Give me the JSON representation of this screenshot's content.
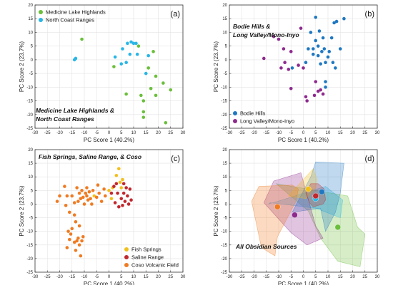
{
  "chart_data": [
    {
      "type": "scatter",
      "panel_label": "(a)",
      "title": "Medicine Lake Highlands & North Coast Ranges",
      "xlabel": "PC Score 1 (40.2%)",
      "ylabel": "PC Score 2 (23.7%)",
      "xlim": [
        -30,
        30
      ],
      "ylim": [
        -25,
        20
      ],
      "xticks": [
        -30,
        -25,
        -20,
        -15,
        -10,
        -5,
        0,
        5,
        10,
        15,
        20,
        25,
        30
      ],
      "yticks": [
        -25,
        -20,
        -15,
        -10,
        -5,
        0,
        5,
        10,
        15,
        20
      ],
      "grid": true,
      "legend_position": "top-left",
      "series": [
        {
          "name": "Medicine Lake Highlands",
          "color": "#6bbf3b",
          "points": [
            [
              -11,
              7.5
            ],
            [
              2,
              -2.5
            ],
            [
              7,
              -12.5
            ],
            [
              12,
              5
            ],
            [
              13,
              -13
            ],
            [
              14,
              -15
            ],
            [
              14,
              -19
            ],
            [
              14,
              -21
            ],
            [
              16,
              -3
            ],
            [
              17,
              -10.5
            ],
            [
              18,
              3
            ],
            [
              19,
              -6
            ],
            [
              19,
              -13
            ],
            [
              22,
              -8.5
            ],
            [
              23,
              -23
            ],
            [
              25,
              -11
            ]
          ]
        },
        {
          "name": "North Coast Ranges",
          "color": "#29b6e6",
          "points": [
            [
              -14,
              0
            ],
            [
              -13.5,
              0.5
            ],
            [
              2.5,
              1
            ],
            [
              5.5,
              4
            ],
            [
              5,
              -1.5
            ],
            [
              7,
              -1
            ],
            [
              7.5,
              6
            ],
            [
              8.5,
              2
            ],
            [
              9,
              6.5
            ],
            [
              10,
              6
            ],
            [
              11,
              6
            ],
            [
              11.5,
              2
            ],
            [
              15,
              -5
            ],
            [
              16,
              1.5
            ]
          ]
        }
      ]
    },
    {
      "type": "scatter",
      "panel_label": "(b)",
      "title": "Bodie Hills & Long Valley/Mono-Inyo",
      "xlabel": "PC Score 1 (40.2%)",
      "ylabel": "PC Score 2 (23.7%)",
      "xlim": [
        -30,
        30
      ],
      "ylim": [
        -25,
        20
      ],
      "xticks": [
        -30,
        -25,
        -20,
        -15,
        -10,
        -5,
        0,
        5,
        10,
        15,
        20,
        25,
        30
      ],
      "yticks": [
        -25,
        -20,
        -15,
        -10,
        -5,
        0,
        5,
        10,
        15,
        20
      ],
      "grid": true,
      "legend_position": "bottom-left",
      "series": [
        {
          "name": "Bodie Hills",
          "color": "#1f78c1",
          "points": [
            [
              -4.5,
              -3
            ],
            [
              1,
              -1
            ],
            [
              2,
              4
            ],
            [
              3,
              10
            ],
            [
              4,
              2
            ],
            [
              4,
              4
            ],
            [
              5,
              7
            ],
            [
              5,
              15.5
            ],
            [
              6,
              1.5
            ],
            [
              6,
              5
            ],
            [
              6.5,
              10.5
            ],
            [
              7,
              -1.5
            ],
            [
              7.5,
              3
            ],
            [
              8,
              8
            ],
            [
              8.5,
              4
            ],
            [
              9,
              -1
            ],
            [
              9,
              -8
            ],
            [
              9,
              -10
            ],
            [
              10,
              1
            ],
            [
              10.5,
              3
            ],
            [
              11.5,
              8
            ],
            [
              12,
              -1
            ],
            [
              12.5,
              13.5
            ],
            [
              13,
              -3
            ],
            [
              13.5,
              14
            ],
            [
              15,
              4
            ],
            [
              16.5,
              15
            ]
          ]
        },
        {
          "name": "Long Valley/Mono-Inyo",
          "color": "#8e2a8e",
          "points": [
            [
              -16,
              0.5
            ],
            [
              -12,
              8.5
            ],
            [
              -10,
              7.5
            ],
            [
              -9,
              -3
            ],
            [
              -8,
              4
            ],
            [
              -7.5,
              -1
            ],
            [
              -6,
              -3.5
            ],
            [
              -5,
              3
            ],
            [
              -5,
              -10.5
            ],
            [
              -2,
              -2
            ],
            [
              -1,
              11.5
            ],
            [
              0,
              -3
            ],
            [
              1,
              -13.5
            ],
            [
              1.5,
              -15
            ],
            [
              4.5,
              -13
            ],
            [
              5,
              -8
            ],
            [
              6,
              -11.5
            ],
            [
              7,
              -11
            ],
            [
              8,
              -12.5
            ]
          ]
        }
      ]
    },
    {
      "type": "scatter",
      "panel_label": "(c)",
      "title": "Fish Springs, Saline Range, & Coso",
      "xlabel": "PC Score 1 (40.2%)",
      "ylabel": "PC Score 2 (23.7%)",
      "xlim": [
        -30,
        30
      ],
      "ylim": [
        -25,
        20
      ],
      "xticks": [
        -30,
        -25,
        -20,
        -15,
        -10,
        -5,
        0,
        5,
        10,
        15,
        20,
        25,
        30
      ],
      "yticks": [
        -25,
        -20,
        -15,
        -10,
        -5,
        0,
        5,
        10,
        15,
        20
      ],
      "grid": true,
      "legend_position": "bottom-right",
      "series": [
        {
          "name": "Fish Springs",
          "color": "#f2c01c",
          "points": [
            [
              -6,
              3
            ],
            [
              0,
              5
            ],
            [
              1,
              2
            ],
            [
              1.5,
              6
            ],
            [
              3,
              10.5
            ],
            [
              4,
              13
            ],
            [
              4.5,
              8
            ],
            [
              5,
              6
            ],
            [
              5.5,
              9
            ]
          ]
        },
        {
          "name": "Saline Range",
          "color": "#c1272d",
          "points": [
            [
              1,
              4
            ],
            [
              2,
              6.5
            ],
            [
              2.5,
              0.5
            ],
            [
              3.5,
              4
            ],
            [
              4,
              -1
            ],
            [
              5,
              2
            ],
            [
              5.5,
              -0.5
            ],
            [
              6,
              4
            ],
            [
              6.5,
              1
            ],
            [
              7,
              6
            ],
            [
              7.5,
              3
            ],
            [
              8,
              0
            ],
            [
              8.5,
              5.5
            ],
            [
              9,
              1.5
            ],
            [
              3,
              7.5
            ],
            [
              6,
              7.5
            ]
          ]
        },
        {
          "name": "Coso Volcanic Field",
          "color": "#ef7b22",
          "points": [
            [
              -21,
              1
            ],
            [
              -20,
              3
            ],
            [
              -18,
              6.5
            ],
            [
              -17.5,
              -0.5
            ],
            [
              -17,
              3
            ],
            [
              -16,
              -3
            ],
            [
              -15,
              3
            ],
            [
              -14,
              0.5
            ],
            [
              -13,
              6
            ],
            [
              -12.5,
              1
            ],
            [
              -12,
              4
            ],
            [
              -11.5,
              2
            ],
            [
              -11,
              5
            ],
            [
              -10.5,
              2.5
            ],
            [
              -10,
              0
            ],
            [
              -9.5,
              4
            ],
            [
              -9,
              3
            ],
            [
              -9,
              6
            ],
            [
              -8.5,
              1.5
            ],
            [
              -8,
              4.5
            ],
            [
              -7.5,
              2
            ],
            [
              -7,
              0
            ],
            [
              -6.5,
              5
            ],
            [
              -5,
              2.5
            ],
            [
              -4.5,
              7
            ],
            [
              -4,
              4
            ],
            [
              -3,
              1
            ],
            [
              -2,
              5.5
            ],
            [
              -1.5,
              3
            ],
            [
              -14,
              -4
            ],
            [
              -13.5,
              -6.5
            ],
            [
              -12,
              -8
            ],
            [
              -15,
              -9
            ],
            [
              -16,
              -13
            ],
            [
              -17,
              -16
            ],
            [
              -15.5,
              -11
            ],
            [
              -14,
              -14
            ],
            [
              -13.5,
              -17
            ],
            [
              -13,
              -13.5
            ],
            [
              -12.5,
              -12.5
            ],
            [
              -12,
              -15
            ],
            [
              -11.5,
              -19
            ],
            [
              -11,
              -13.5
            ],
            [
              -10.5,
              -12
            ],
            [
              -16.5,
              -10
            ]
          ]
        }
      ]
    },
    {
      "type": "scatter",
      "panel_label": "(d)",
      "title": "All Obsidian Sources",
      "xlabel": "PC Score 1 (40.2%)",
      "ylabel": "PC Score 2 (23.7%)",
      "xlim": [
        -30,
        30
      ],
      "ylim": [
        -25,
        20
      ],
      "xticks": [
        -30,
        -25,
        -20,
        -15,
        -10,
        -5,
        0,
        5,
        10,
        15,
        20,
        25,
        30
      ],
      "yticks": [
        -25,
        -20,
        -15,
        -10,
        -5,
        0,
        5,
        10,
        15,
        20
      ],
      "grid": true,
      "hulls": [
        {
          "source": "Medicine Lake Highlands",
          "color": "#6bbf3b",
          "points": [
            [
              -11,
              7.5
            ],
            [
              18,
              3
            ],
            [
              22,
              -8.5
            ],
            [
              25,
              -11
            ],
            [
              23,
              -23
            ],
            [
              14,
              -21
            ],
            [
              7,
              -12.5
            ],
            [
              2,
              -2.5
            ]
          ]
        },
        {
          "source": "North Coast Ranges",
          "color": "#29b6e6",
          "points": [
            [
              -14,
              0
            ],
            [
              9,
              6.5
            ],
            [
              16,
              1.5
            ],
            [
              15,
              -5
            ],
            [
              5,
              -1.5
            ],
            [
              -13.5,
              0.5
            ]
          ]
        },
        {
          "source": "Bodie Hills",
          "color": "#1f78c1",
          "points": [
            [
              -4.5,
              -3
            ],
            [
              3,
              10
            ],
            [
              5,
              15.5
            ],
            [
              16.5,
              15
            ],
            [
              15,
              4
            ],
            [
              13,
              -3
            ],
            [
              9,
              -10
            ],
            [
              7,
              -1.5
            ]
          ]
        },
        {
          "source": "Long Valley/Mono-Inyo",
          "color": "#8e2a8e",
          "points": [
            [
              -16,
              0.5
            ],
            [
              -12,
              8.5
            ],
            [
              -1,
              11.5
            ],
            [
              5,
              -8
            ],
            [
              8,
              -12.5
            ],
            [
              1.5,
              -15
            ],
            [
              -5,
              -10.5
            ]
          ]
        },
        {
          "source": "Fish Springs",
          "color": "#f2c01c",
          "points": [
            [
              -6,
              3
            ],
            [
              4,
              13
            ],
            [
              5.5,
              9
            ],
            [
              5,
              6
            ],
            [
              1,
              2
            ]
          ]
        },
        {
          "source": "Saline Range",
          "color": "#c1272d",
          "points": [
            [
              1,
              4
            ],
            [
              3,
              7.5
            ],
            [
              6,
              7.5
            ],
            [
              8.5,
              5.5
            ],
            [
              9,
              1.5
            ],
            [
              8,
              0
            ],
            [
              4,
              -1
            ],
            [
              2.5,
              0.5
            ]
          ]
        },
        {
          "source": "Coso Volcanic Field",
          "color": "#ef7b22",
          "points": [
            [
              -21,
              1
            ],
            [
              -18,
              6.5
            ],
            [
              -4.5,
              7
            ],
            [
              -2,
              5.5
            ],
            [
              -3,
              1
            ],
            [
              -10.5,
              -12
            ],
            [
              -11.5,
              -19
            ],
            [
              -17,
              -16
            ]
          ]
        }
      ],
      "centroids": [
        {
          "source": "Medicine Lake Highlands",
          "color": "#6bbf3b",
          "x": 14,
          "y": -8.5
        },
        {
          "source": "North Coast Ranges",
          "color": "#29b6e6",
          "x": 5,
          "y": 2
        },
        {
          "source": "Bodie Hills",
          "color": "#1f78c1",
          "x": 7.5,
          "y": 4.5
        },
        {
          "source": "Long Valley/Mono-Inyo",
          "color": "#8e2a8e",
          "x": -3.5,
          "y": -4
        },
        {
          "source": "Fish Springs",
          "color": "#f2c01c",
          "x": 2,
          "y": 5.5
        },
        {
          "source": "Saline Range",
          "color": "#c1272d",
          "x": 5,
          "y": 3
        },
        {
          "source": "Coso Volcanic Field",
          "color": "#ef7b22",
          "x": -10.5,
          "y": -1
        }
      ]
    }
  ]
}
